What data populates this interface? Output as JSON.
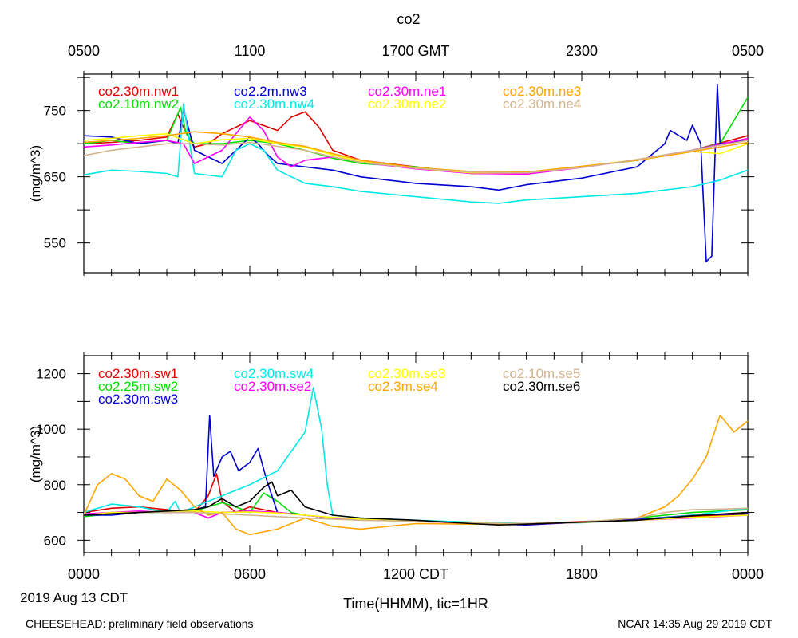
{
  "figure": {
    "title": "co2",
    "date_label": "2019 Aug 13 CDT",
    "footer_left": "CHEESEHEAD: preliminary field observations",
    "footer_right": "NCAR 14:35 Aug 29 2019 CDT"
  },
  "chart_data": [
    {
      "type": "line",
      "title": "co2",
      "ylabel": "(mg/m^3)",
      "ylim": [
        505,
        805
      ],
      "yticks": [
        550,
        650,
        750
      ],
      "xlim": [
        0,
        24
      ],
      "top_xticks": [
        {
          "x": 0,
          "label": "0500"
        },
        {
          "x": 6,
          "label": "1100"
        },
        {
          "x": 12,
          "label": "1700 GMT"
        },
        {
          "x": 18,
          "label": "2300"
        },
        {
          "x": 24,
          "label": "0500"
        }
      ],
      "legend": [
        {
          "name": "co2.30m.nw1",
          "color": "#e00000"
        },
        {
          "name": "co2.10m.nw2",
          "color": "#00e000"
        },
        {
          "name": "co2.2m.nw3",
          "color": "#0000d0"
        },
        {
          "name": "co2.30m.nw4",
          "color": "#00e8e8"
        },
        {
          "name": "co2.30m.ne1",
          "color": "#ff00ff"
        },
        {
          "name": "co2.30m.ne2",
          "color": "#ffff00"
        },
        {
          "name": "co2.30m.ne3",
          "color": "#ffa500"
        },
        {
          "name": "co2.30m.ne4",
          "color": "#d2b48c"
        }
      ],
      "series": [
        {
          "name": "co2.30m.nw1",
          "color": "#e00000",
          "x": [
            0,
            1,
            2,
            3,
            3.4,
            3.6,
            4,
            4.5,
            5,
            6,
            7,
            7.5,
            8,
            8.5,
            9,
            10,
            12,
            14,
            16,
            18,
            20,
            22,
            24
          ],
          "y": [
            700,
            702,
            705,
            710,
            745,
            725,
            695,
            700,
            715,
            735,
            720,
            740,
            748,
            725,
            690,
            675,
            665,
            655,
            655,
            665,
            675,
            690,
            712
          ]
        },
        {
          "name": "co2.10m.nw2",
          "color": "#00e000",
          "x": [
            0,
            1,
            2,
            3,
            3.5,
            3.7,
            4,
            5,
            6,
            7,
            8,
            9,
            10,
            12,
            14,
            16,
            18,
            20,
            22,
            23,
            23.5,
            24
          ],
          "y": [
            700,
            705,
            700,
            705,
            755,
            715,
            700,
            700,
            705,
            700,
            690,
            678,
            670,
            665,
            655,
            655,
            665,
            675,
            690,
            700,
            735,
            770
          ]
        },
        {
          "name": "co2.2m.nw3",
          "color": "#0000d0",
          "x": [
            0,
            1,
            2,
            3,
            3.4,
            3.6,
            4,
            5,
            5.5,
            6,
            6.3,
            6.6,
            7,
            8,
            9,
            10,
            12,
            14,
            15,
            16,
            18,
            20,
            21,
            21.2,
            21.8,
            22,
            22.3,
            22.5,
            22.7,
            22.9,
            23,
            24
          ],
          "y": [
            712,
            710,
            700,
            705,
            700,
            752,
            690,
            670,
            690,
            710,
            700,
            685,
            670,
            665,
            660,
            650,
            640,
            635,
            630,
            638,
            648,
            665,
            700,
            720,
            705,
            728,
            700,
            522,
            530,
            790,
            700,
            705
          ]
        },
        {
          "name": "co2.30m.nw4",
          "color": "#00e8e8",
          "x": [
            0,
            1,
            2,
            3,
            3.4,
            3.6,
            4,
            5,
            5.5,
            6,
            6.5,
            7,
            8,
            9,
            10,
            12,
            14,
            15,
            16,
            18,
            20,
            22,
            23,
            24
          ],
          "y": [
            653,
            660,
            658,
            655,
            650,
            760,
            655,
            650,
            690,
            700,
            690,
            660,
            640,
            635,
            628,
            620,
            612,
            610,
            615,
            620,
            625,
            635,
            645,
            660
          ]
        },
        {
          "name": "co2.30m.ne1",
          "color": "#ff00ff",
          "x": [
            0,
            1,
            2,
            3,
            3.6,
            4,
            5,
            6,
            6.5,
            7,
            7.5,
            8,
            9,
            10,
            12,
            14,
            16,
            18,
            20,
            22,
            24
          ],
          "y": [
            695,
            698,
            702,
            705,
            700,
            670,
            690,
            740,
            720,
            680,
            665,
            675,
            680,
            672,
            662,
            655,
            654,
            664,
            676,
            690,
            708
          ]
        },
        {
          "name": "co2.30m.ne2",
          "color": "#ffff00",
          "x": [
            0,
            1,
            2,
            3,
            4,
            5,
            6,
            7,
            8,
            9,
            10,
            12,
            14,
            16,
            18,
            20,
            22,
            23,
            24
          ],
          "y": [
            705,
            708,
            712,
            715,
            700,
            706,
            708,
            700,
            695,
            683,
            673,
            663,
            656,
            656,
            665,
            676,
            688,
            685,
            700
          ]
        },
        {
          "name": "co2.30m.ne3",
          "color": "#ffa500",
          "x": [
            0,
            1,
            2,
            3,
            4,
            5,
            6,
            7,
            8,
            9,
            10,
            12,
            14,
            16,
            18,
            20,
            22,
            24
          ],
          "y": [
            702,
            705,
            708,
            712,
            718,
            715,
            710,
            702,
            696,
            685,
            675,
            664,
            658,
            657,
            666,
            675,
            688,
            702
          ]
        },
        {
          "name": "co2.30m.ne4",
          "color": "#d2b48c",
          "x": [
            0,
            1,
            2,
            3,
            4,
            5,
            6,
            7,
            8,
            9,
            10,
            12,
            14,
            16,
            18,
            20,
            22,
            24
          ],
          "y": [
            682,
            690,
            695,
            700,
            700,
            698,
            702,
            696,
            690,
            680,
            672,
            663,
            657,
            656,
            664,
            676,
            690,
            705
          ]
        }
      ]
    },
    {
      "type": "line",
      "ylabel": "(mg/m^3)",
      "xlabel": "Time(HHMM), tic=1HR",
      "ylim": [
        555,
        1265
      ],
      "yticks": [
        600,
        800,
        1000,
        1200
      ],
      "xlim": [
        0,
        24
      ],
      "bottom_xticks": [
        {
          "x": 0,
          "label": "0000"
        },
        {
          "x": 6,
          "label": "0600"
        },
        {
          "x": 12,
          "label": "1200 CDT"
        },
        {
          "x": 18,
          "label": "1800"
        },
        {
          "x": 24,
          "label": "0000"
        }
      ],
      "legend": [
        {
          "name": "co2.30m.sw1",
          "color": "#e00000"
        },
        {
          "name": "co2.25m.sw2",
          "color": "#00e000"
        },
        {
          "name": "co2.30m.sw3",
          "color": "#0000d0"
        },
        {
          "name": "co2.30m.sw4",
          "color": "#00e8e8"
        },
        {
          "name": "co2.30m.se2",
          "color": "#ff00ff"
        },
        {
          "name": "co2.30m.se3",
          "color": "#ffff00"
        },
        {
          "name": "co2.3m.se4",
          "color": "#ffa500"
        },
        {
          "name": "co2.10m.se5",
          "color": "#d2b48c"
        },
        {
          "name": "co2.30m.se6",
          "color": "#000000"
        }
      ],
      "series": [
        {
          "name": "co2.30m.sw1",
          "color": "#e00000",
          "x": [
            0,
            1,
            2,
            3,
            4,
            4.5,
            4.8,
            5,
            5.5,
            6,
            7,
            8,
            9,
            10,
            12,
            14,
            16,
            18,
            20,
            22,
            24
          ],
          "y": [
            700,
            715,
            720,
            710,
            700,
            760,
            840,
            740,
            700,
            720,
            700,
            690,
            680,
            678,
            670,
            660,
            660,
            667,
            675,
            685,
            695
          ]
        },
        {
          "name": "co2.25m.sw2",
          "color": "#00e000",
          "x": [
            0,
            1,
            2,
            3,
            4,
            4.5,
            5,
            5.5,
            6,
            6.5,
            7,
            7.5,
            8,
            9,
            10,
            12,
            14,
            16,
            18,
            20,
            22,
            24
          ],
          "y": [
            685,
            695,
            700,
            700,
            705,
            720,
            735,
            720,
            700,
            770,
            740,
            700,
            690,
            680,
            675,
            670,
            665,
            660,
            665,
            680,
            700,
            710
          ]
        },
        {
          "name": "co2.30m.sw3",
          "color": "#0000d0",
          "x": [
            0,
            1,
            2,
            3,
            4,
            4.4,
            4.55,
            4.7,
            5,
            5.3,
            5.6,
            6,
            6.3,
            6.6,
            7,
            8,
            9,
            10,
            12,
            14,
            16,
            18,
            20,
            22,
            24
          ],
          "y": [
            690,
            690,
            700,
            705,
            710,
            720,
            1050,
            830,
            900,
            920,
            850,
            880,
            930,
            820,
            700,
            690,
            680,
            675,
            670,
            660,
            655,
            665,
            675,
            690,
            695
          ]
        },
        {
          "name": "co2.30m.sw4",
          "color": "#00e8e8",
          "x": [
            0,
            0.5,
            1,
            2,
            3,
            3.3,
            3.5,
            4,
            4.5,
            5,
            6,
            7,
            8,
            8.3,
            8.6,
            8.8,
            9,
            10,
            12,
            14,
            16,
            18,
            20,
            22,
            24
          ],
          "y": [
            700,
            715,
            730,
            720,
            700,
            740,
            700,
            720,
            740,
            760,
            800,
            850,
            990,
            1150,
            1000,
            800,
            690,
            680,
            672,
            665,
            660,
            663,
            672,
            690,
            715
          ]
        },
        {
          "name": "co2.30m.se2",
          "color": "#ff00ff",
          "x": [
            0,
            1,
            2,
            3,
            4,
            4.5,
            5,
            6,
            7,
            8,
            9,
            10,
            12,
            14,
            16,
            18,
            20,
            22,
            24
          ],
          "y": [
            695,
            700,
            705,
            700,
            700,
            680,
            700,
            705,
            700,
            690,
            680,
            676,
            668,
            660,
            658,
            664,
            672,
            680,
            690
          ]
        },
        {
          "name": "co2.30m.se3",
          "color": "#ffff00",
          "x": [
            0,
            1,
            2,
            3,
            4,
            5,
            6,
            7,
            8,
            9,
            10,
            12,
            14,
            16,
            18,
            20,
            22,
            24
          ],
          "y": [
            690,
            700,
            700,
            705,
            705,
            700,
            702,
            698,
            690,
            682,
            676,
            668,
            662,
            660,
            664,
            672,
            682,
            690
          ]
        },
        {
          "name": "co2.3m.se4",
          "color": "#ffa500",
          "x": [
            0,
            0.5,
            1,
            1.5,
            2,
            2.5,
            3,
            3.5,
            4,
            4.5,
            5,
            5.5,
            6,
            7,
            8,
            9,
            10,
            12,
            14,
            16,
            18,
            20,
            21,
            21.5,
            22,
            22.5,
            23,
            23.5,
            24
          ],
          "y": [
            690,
            800,
            840,
            820,
            760,
            740,
            820,
            780,
            720,
            690,
            700,
            640,
            620,
            640,
            680,
            650,
            640,
            660,
            658,
            660,
            665,
            680,
            720,
            760,
            820,
            900,
            1050,
            990,
            1030
          ]
        },
        {
          "name": "co2.10m.se5",
          "color": "#d2b48c",
          "x": [
            0,
            1,
            2,
            3,
            4,
            5,
            6,
            7,
            8,
            9,
            10,
            12,
            14,
            16,
            18,
            20,
            21,
            22,
            23,
            24
          ],
          "y": [
            690,
            695,
            700,
            700,
            700,
            695,
            690,
            685,
            680,
            676,
            672,
            668,
            662,
            660,
            665,
            680,
            700,
            710,
            712,
            715
          ]
        },
        {
          "name": "co2.30m.se6",
          "color": "#000000",
          "x": [
            0,
            1,
            2,
            3,
            4,
            4.5,
            5,
            5.5,
            6,
            6.5,
            6.8,
            7,
            7.5,
            8,
            9,
            10,
            12,
            14,
            15,
            16,
            18,
            20,
            22,
            24
          ],
          "y": [
            690,
            695,
            700,
            705,
            710,
            720,
            750,
            720,
            740,
            790,
            810,
            760,
            780,
            720,
            690,
            680,
            672,
            660,
            655,
            658,
            665,
            672,
            688,
            700
          ]
        }
      ]
    }
  ]
}
